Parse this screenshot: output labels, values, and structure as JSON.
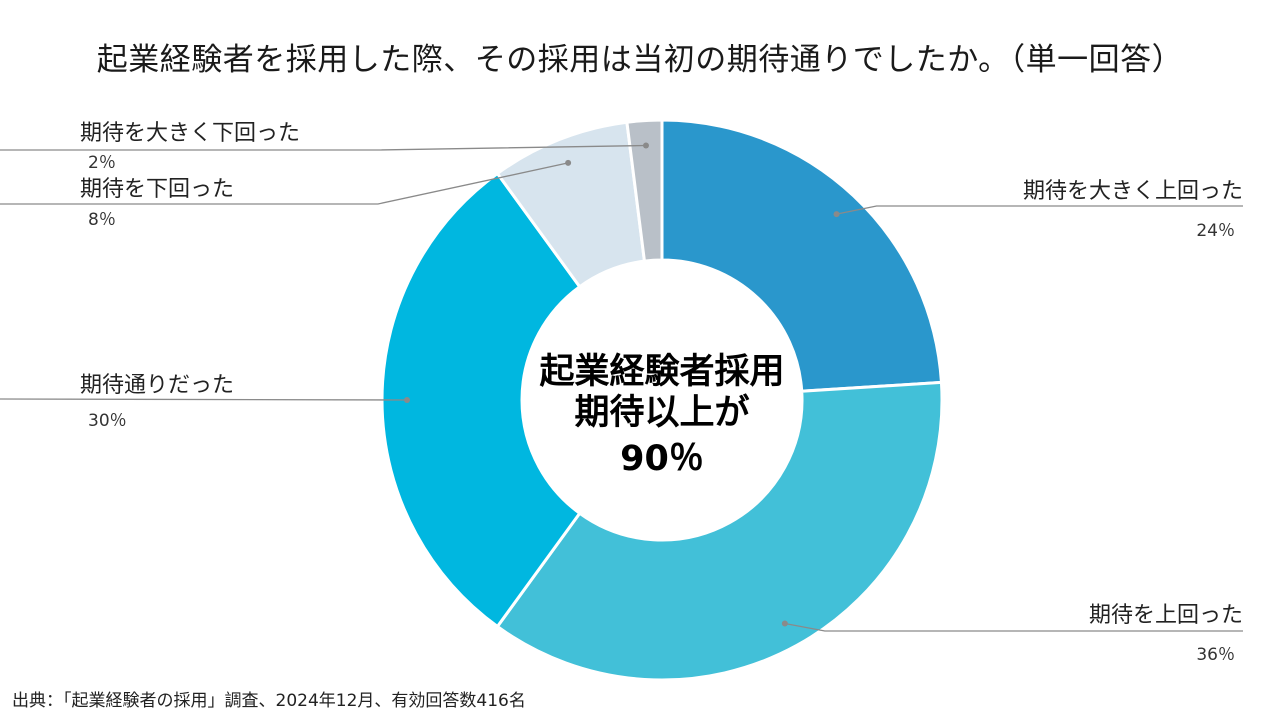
{
  "chart_data": {
    "type": "pie",
    "title": "起業経験者を採用した際、その採用は当初の期待通りでしたか。（単一回答）",
    "center_lines": [
      "起業経験者採用",
      "期待以上が",
      "90％"
    ],
    "slices": [
      {
        "label": "期待を大きく上回った",
        "value": 24,
        "value_label": "24％",
        "color": "#2a97cc"
      },
      {
        "label": "期待を上回った",
        "value": 36,
        "value_label": "36％",
        "color": "#42c0d8"
      },
      {
        "label": "期待通りだった",
        "value": 30,
        "value_label": "30％",
        "color": "#00b7e0"
      },
      {
        "label": "期待を下回った",
        "value": 8,
        "value_label": "8％",
        "color": "#d7e4ee"
      },
      {
        "label": "期待を大きく下回った",
        "value": 2,
        "value_label": "2％",
        "color": "#b9c0c8"
      }
    ]
  },
  "footer": {
    "source": "出典：「起業経験者の採用」調査、2024年12月、有効回答数416名"
  }
}
